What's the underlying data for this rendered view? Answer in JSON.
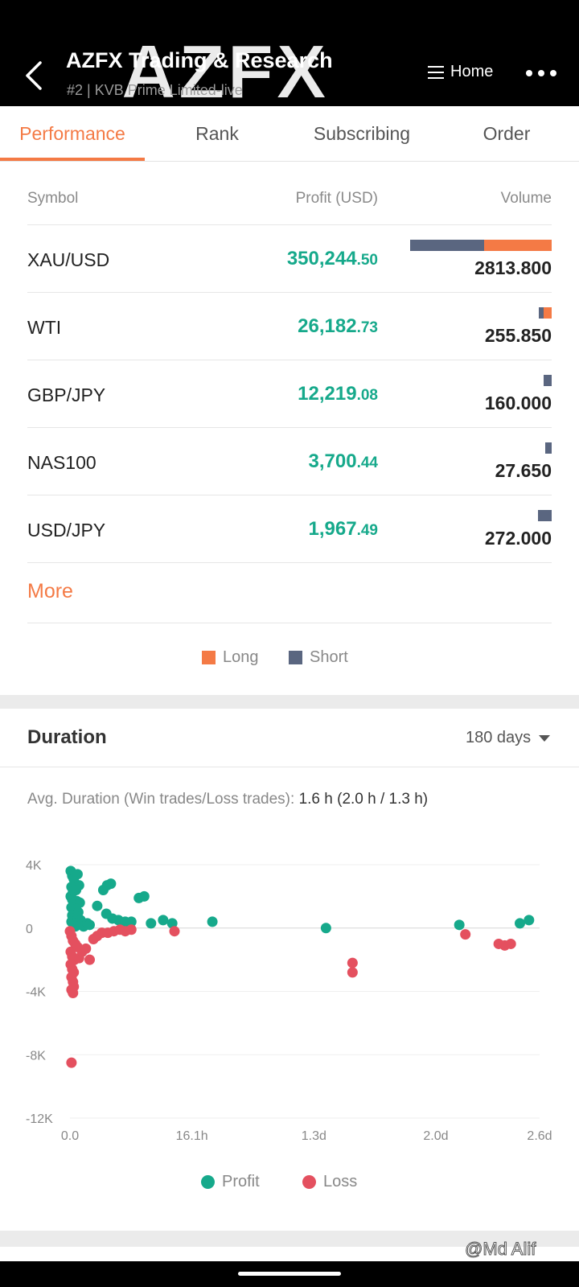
{
  "header": {
    "title": "AZFX Trading & Research",
    "subtitle": "#2 | KVB Prime Limited-live",
    "watermark": "AZFX",
    "home_label": "Home"
  },
  "tabs": [
    {
      "label": "Performance",
      "active": true
    },
    {
      "label": "Rank",
      "active": false
    },
    {
      "label": "Subscribing",
      "active": false
    },
    {
      "label": "Order",
      "active": false
    }
  ],
  "performance": {
    "columns": {
      "symbol": "Symbol",
      "profit": "Profit (USD)",
      "volume": "Volume"
    },
    "rows": [
      {
        "symbol": "XAU/USD",
        "profit_int": "350,244",
        "profit_dec": ".50",
        "volume": "2813.800",
        "long_share": 0.48
      },
      {
        "symbol": "WTI",
        "profit_int": "26,182",
        "profit_dec": ".73",
        "volume": "255.850",
        "long_share": 0.6
      },
      {
        "symbol": "GBP/JPY",
        "profit_int": "12,219",
        "profit_dec": ".08",
        "volume": "160.000",
        "long_share": 0.0
      },
      {
        "symbol": "NAS100",
        "profit_int": "3,700",
        "profit_dec": ".44",
        "volume": "27.650",
        "long_share": 0.0
      },
      {
        "symbol": "USD/JPY",
        "profit_int": "1,967",
        "profit_dec": ".49",
        "volume": "272.000",
        "long_share": 0.0
      }
    ],
    "more_label": "More",
    "legend": {
      "long": "Long",
      "short": "Short"
    },
    "colors": {
      "long": "#f47a45",
      "short": "#5a6680",
      "profit_text": "#16a98b"
    }
  },
  "duration": {
    "title": "Duration",
    "period": "180 days",
    "avg_label": "Avg. Duration (Win trades/Loss trades):",
    "avg_value": "1.6 h (2.0 h / 1.3 h)",
    "legend": {
      "profit": "Profit",
      "loss": "Loss"
    }
  },
  "chart_data": {
    "type": "scatter",
    "title": "",
    "xlabel": "",
    "ylabel": "",
    "x_unit": "hours",
    "xlim": [
      0,
      62
    ],
    "ylim": [
      -12000,
      4000
    ],
    "y_ticks": [
      4000,
      0,
      -4000,
      -8000,
      -12000
    ],
    "y_tick_labels": [
      "4K",
      "0",
      "-4K",
      "-8K",
      "-12K"
    ],
    "x_ticks": [
      0,
      16.1,
      32.2,
      48.3,
      62
    ],
    "x_tick_labels": [
      "0.0",
      "16.1h",
      "1.3d",
      "2.0d",
      "2.6d"
    ],
    "grid": true,
    "legend_position": "bottom",
    "colors": {
      "profit": "#16a98b",
      "loss": "#e4505f"
    },
    "series": [
      {
        "name": "Profit",
        "points": [
          [
            0.1,
            3600
          ],
          [
            0.3,
            3300
          ],
          [
            0.5,
            3100
          ],
          [
            1.0,
            3400
          ],
          [
            1.2,
            2700
          ],
          [
            0.2,
            2600
          ],
          [
            0.4,
            2300
          ],
          [
            0.8,
            2400
          ],
          [
            0.1,
            2000
          ],
          [
            0.3,
            1800
          ],
          [
            0.6,
            1600
          ],
          [
            0.9,
            1700
          ],
          [
            1.3,
            1600
          ],
          [
            0.2,
            1300
          ],
          [
            0.5,
            1100
          ],
          [
            0.8,
            1200
          ],
          [
            1.1,
            1000
          ],
          [
            0.3,
            800
          ],
          [
            0.6,
            600
          ],
          [
            1.0,
            700
          ],
          [
            1.4,
            500
          ],
          [
            0.2,
            400
          ],
          [
            0.5,
            300
          ],
          [
            0.9,
            300
          ],
          [
            1.5,
            200
          ],
          [
            0.7,
            100
          ],
          [
            1.8,
            100
          ],
          [
            2.3,
            300
          ],
          [
            2.6,
            200
          ],
          [
            3.6,
            1400
          ],
          [
            4.4,
            2400
          ],
          [
            4.9,
            2700
          ],
          [
            5.4,
            2800
          ],
          [
            4.8,
            900
          ],
          [
            5.6,
            600
          ],
          [
            6.4,
            500
          ],
          [
            7.3,
            400
          ],
          [
            8.1,
            400
          ],
          [
            9.1,
            1900
          ],
          [
            9.8,
            2000
          ],
          [
            10.7,
            300
          ],
          [
            12.3,
            500
          ],
          [
            13.5,
            300
          ],
          [
            18.8,
            400
          ],
          [
            33.8,
            0
          ],
          [
            51.4,
            200
          ],
          [
            59.4,
            300
          ],
          [
            60.6,
            500
          ]
        ]
      },
      {
        "name": "Loss",
        "points": [
          [
            0.0,
            -200
          ],
          [
            0.2,
            -500
          ],
          [
            0.4,
            -800
          ],
          [
            0.7,
            -1000
          ],
          [
            1.0,
            -1200
          ],
          [
            0.1,
            -1500
          ],
          [
            0.3,
            -1800
          ],
          [
            0.6,
            -2000
          ],
          [
            0.1,
            -2300
          ],
          [
            0.3,
            -2600
          ],
          [
            0.5,
            -2800
          ],
          [
            0.2,
            -3100
          ],
          [
            0.4,
            -3400
          ],
          [
            0.5,
            -3700
          ],
          [
            0.2,
            -3900
          ],
          [
            0.4,
            -4100
          ],
          [
            1.2,
            -1900
          ],
          [
            1.6,
            -1500
          ],
          [
            2.1,
            -1300
          ],
          [
            2.6,
            -2000
          ],
          [
            3.1,
            -700
          ],
          [
            3.6,
            -500
          ],
          [
            4.2,
            -300
          ],
          [
            5.0,
            -300
          ],
          [
            5.8,
            -200
          ],
          [
            6.6,
            -100
          ],
          [
            7.3,
            -200
          ],
          [
            8.1,
            -100
          ],
          [
            0.2,
            -8500
          ],
          [
            13.8,
            -200
          ],
          [
            37.3,
            -2200
          ],
          [
            37.3,
            -2800
          ],
          [
            52.2,
            -400
          ],
          [
            56.6,
            -1000
          ],
          [
            57.4,
            -1100
          ],
          [
            58.2,
            -1000
          ]
        ]
      }
    ]
  },
  "footer": {
    "credit": "@Md Alif"
  }
}
